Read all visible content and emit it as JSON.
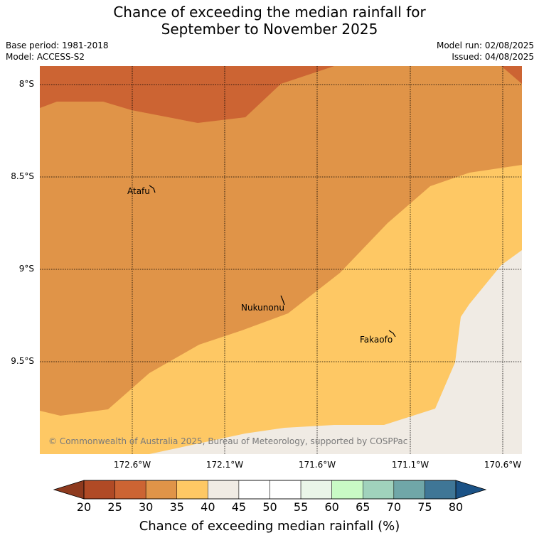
{
  "title_line1": "Chance of exceeding the median rainfall for",
  "title_line2": "September to November 2025",
  "base_period": "Base period: 1981-2018",
  "model": "Model: ACCESS-S2",
  "model_run": "Model run: 02/08/2025",
  "issued": "Issued: 04/08/2025",
  "lat_labels": [
    "8°S",
    "8.5°S",
    "9°S",
    "9.5°S"
  ],
  "lon_labels": [
    "172.6°W",
    "172.1°W",
    "171.6°W",
    "171.1°W",
    "170.6°W"
  ],
  "places": {
    "atafu": "Atafu",
    "nukunonu": "Nukunonu",
    "fakaofo": "Fakaofo"
  },
  "copyright": "© Commonwealth of Australia 2025, Bureau of Meteorology, supported by COSPPac",
  "colorbar": {
    "title": "Chance of exceeding median rainfall (%)",
    "ticks": [
      "20",
      "25",
      "30",
      "35",
      "40",
      "45",
      "50",
      "55",
      "60",
      "65",
      "70",
      "75",
      "80"
    ],
    "under_color": "#8e3a1e",
    "over_color": "#1b5286",
    "colors": [
      "#b04a25",
      "#cc6433",
      "#e09448",
      "#fec864",
      "#f0ebe4",
      "#ffffff",
      "#ffffff",
      "#eaf5e8",
      "#c9fac5",
      "#a0d2bc",
      "#70a7a8",
      "#3f7696"
    ]
  },
  "region_colors": {
    "c20_25": "#cc6433",
    "c25_30": "#e09448",
    "c30_35": "#fec864",
    "c35_45": "#f0ebe4"
  }
}
